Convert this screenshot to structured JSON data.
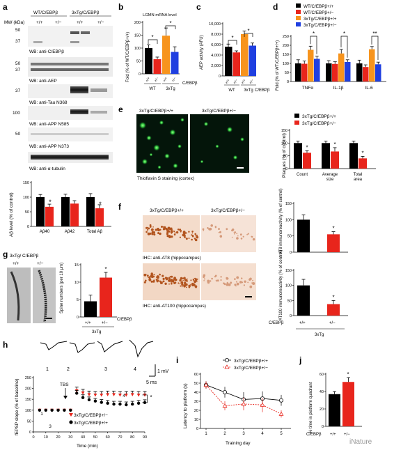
{
  "figure": {
    "panel_labels": [
      "a",
      "b",
      "c",
      "d",
      "e",
      "f",
      "g",
      "h",
      "i",
      "j"
    ],
    "watermark": "iNature",
    "colors": {
      "wt_pos": "#000000",
      "wt_neg": "#e8251c",
      "tg_pos": "#f7941d",
      "tg_neg": "#1f3fe0",
      "plaque_green": "#2bbf3a",
      "ihc_brown": "#b2541e"
    }
  },
  "panel_a": {
    "header_left": "WT/C/EBPβ",
    "header_right": "3xTg/C/EBPβ",
    "mw_label": "MW (kDa)",
    "lane_labels": [
      "+/+",
      "+/−",
      "+/+",
      "+/−"
    ],
    "blots": [
      {
        "caption": "WB: anti-C/EBPβ",
        "mw": [
          "50",
          "37"
        ]
      },
      {
        "caption": "WB: anti-AEP",
        "mw": [
          "50",
          "37"
        ]
      },
      {
        "caption": "WB: anti-Tau N368",
        "mw": [
          "37"
        ]
      },
      {
        "caption": "WB: anti-APP N585",
        "mw": [
          "100"
        ]
      },
      {
        "caption": "WB: anti-APP N373",
        "mw": [
          "50"
        ]
      },
      {
        "caption": "WB: anti-α-tubulin",
        "mw": []
      }
    ],
    "chart": {
      "ylabel": "Aβ level (% of control)",
      "yticks": [
        "0",
        "50",
        "100",
        "150"
      ],
      "categories": [
        "Aβ40",
        "Aβ42",
        "Total Aβ"
      ]
    }
  },
  "panel_b": {
    "title": "LGMN mRNA level",
    "ylabel": "Fold (% of WT/C/EBPβ+/+)",
    "yticks": [
      "0",
      "50",
      "100",
      "150",
      "200"
    ],
    "group_labels": [
      "WT",
      "3xTg"
    ],
    "lane_labels": [
      "+/+",
      "+/−",
      "+/+",
      "+/−"
    ],
    "axis_tag": "C/EBPβ"
  },
  "panel_c": {
    "ylabel": "AEP activity (AFU)",
    "yticks": [
      "0",
      "2,000",
      "4,000",
      "6,000",
      "8,000",
      "10,000"
    ],
    "group_labels": [
      "WT",
      "3xTg"
    ],
    "lane_labels": [
      "+/+",
      "+/−",
      "+/+",
      "+/−"
    ],
    "axis_tag": "C/EBPβ"
  },
  "panel_d": {
    "legend": [
      "WT/C/EBPβ+/+",
      "WT/C/EBPβ+/−",
      "3xTg/C/EBPβ+/+",
      "3xTg/C/EBPβ+/−"
    ],
    "ylabel": "Fold (% of WT/C/EBPβ+/+)",
    "yticks": [
      "0",
      "50",
      "100",
      "150",
      "200",
      "250"
    ],
    "categories": [
      "TNFα",
      "IL-1β",
      "IL-6"
    ],
    "sig": [
      "*",
      "*",
      "**"
    ]
  },
  "panel_e": {
    "img_left_label": "3xTg/C/EBPβ+/+",
    "img_right_label": "3xTg/C/EBPβ+/−",
    "caption": "Thioflavin S staining (cortex)",
    "legend": [
      "3xTg/C/EBPβ+/+",
      "3xTg/C/EBPβ+/−"
    ],
    "ylabel": "Plaques (% of control)",
    "yticks": [
      "0",
      "50",
      "100",
      "150"
    ],
    "categories": [
      "Count",
      "Average size",
      "Total area"
    ]
  },
  "panel_f": {
    "img_left_label": "3xTg/C/EBPβ+/+",
    "img_right_label": "3xTg/C/EBPβ+/−",
    "caption_top": "IHC: anti-AT8  (hippocampus)",
    "caption_bottom": "IHC: anti-AT100 (hippocampus)",
    "at8_ylabel": "AT8 immunoreactivity (% of control)",
    "at100_ylabel": "AT100 immunoreactivity (% of control)",
    "yticks": [
      "0",
      "50",
      "100",
      "150"
    ],
    "x_tag": "C/EBPβ",
    "lane_labels": [
      "+/+",
      "+/−"
    ],
    "group": "3xTg"
  },
  "panel_g": {
    "img_label": "3xTg/ C/EBPβ",
    "img_lane_labels": [
      "+/+",
      "+/−"
    ],
    "ylabel": "Spine numbers (per 10 μm)",
    "yticks": [
      "0",
      "5",
      "10",
      "15"
    ],
    "x_tag": "C/EBPβ",
    "lane_labels": [
      "+/+",
      "+/−"
    ],
    "group": "3xTg"
  },
  "panel_h": {
    "trace_numbers": [
      "1",
      "2",
      "3",
      "4"
    ],
    "scale_mv": "1 mV",
    "scale_ms": "5 ms",
    "ylabel": "fEPSP slope (% of baseline)",
    "xlabel": "Time (min)",
    "xticks": [
      "0",
      "10",
      "20",
      "30",
      "40",
      "50",
      "60",
      "70",
      "80",
      "90"
    ],
    "yticks": [
      "0",
      "50",
      "100",
      "150",
      "200",
      "250"
    ],
    "tbs": "TBS",
    "legend": [
      "3xTg/C/EBPβ+/−",
      "3xTg/C/EBPβ+/+"
    ],
    "sig": "*"
  },
  "panel_i": {
    "legend": [
      "3xTg/C/EBPβ+/+",
      "3xTg/C/EBPβ+/−"
    ],
    "ylabel": "Latency to platform (s)",
    "xlabel": "Training day",
    "xticks": [
      "1",
      "2",
      "3",
      "4",
      "5"
    ],
    "yticks": [
      "0",
      "10",
      "20",
      "30",
      "40",
      "50",
      "60"
    ]
  },
  "panel_j": {
    "ylabel": "% time in platform quadrant",
    "yticks": [
      "0",
      "20",
      "40",
      "60"
    ],
    "x_tag": "C/EBPβ",
    "lane_labels": [
      "+/+",
      "+/−"
    ]
  },
  "chart_data": [
    {
      "type": "bar",
      "id": "a-abeta",
      "categories": [
        "Aβ40",
        "Aβ42",
        "Total Aβ"
      ],
      "series": [
        {
          "values": [
            100,
            100,
            100
          ],
          "errors": [
            9,
            10,
            12
          ]
        },
        {
          "values": [
            67,
            78,
            62
          ],
          "errors": [
            9,
            10,
            12
          ]
        }
      ],
      "ylim": [
        0,
        150
      ]
    },
    {
      "type": "bar",
      "id": "b-lgmn",
      "categories": [
        "WT +/+",
        "WT +/−",
        "3xTg +/+",
        "3xTg +/−"
      ],
      "values": [
        100,
        57,
        148,
        85
      ],
      "errors": [
        13,
        8,
        30,
        20
      ],
      "ylim": [
        0,
        200
      ]
    },
    {
      "type": "bar",
      "id": "c-aep",
      "categories": [
        "WT +/+",
        "WT +/−",
        "3xTg +/+",
        "3xTg +/−"
      ],
      "values": [
        5600,
        4500,
        8000,
        5800
      ],
      "errors": [
        500,
        300,
        600,
        500
      ],
      "ylim": [
        0,
        10000
      ]
    },
    {
      "type": "bar",
      "id": "d-cytokines",
      "categories": [
        "TNFα",
        "IL-1β",
        "IL-6"
      ],
      "series": [
        {
          "name": "WT/C/EBPβ+/+",
          "values": [
            100,
            100,
            100
          ],
          "errors": [
            20,
            15,
            18
          ]
        },
        {
          "name": "WT/C/EBPβ+/−",
          "values": [
            98,
            97,
            80
          ],
          "errors": [
            15,
            12,
            12
          ]
        },
        {
          "name": "3xTg/C/EBPβ+/+",
          "values": [
            175,
            155,
            178
          ],
          "errors": [
            20,
            22,
            15
          ]
        },
        {
          "name": "3xTg/C/EBPβ+/−",
          "values": [
            125,
            108,
            95
          ],
          "errors": [
            15,
            12,
            12
          ]
        }
      ],
      "ylim": [
        0,
        250
      ]
    },
    {
      "type": "bar",
      "id": "e-plaques",
      "categories": [
        "Count",
        "Average size",
        "Total area"
      ],
      "series": [
        {
          "name": "3xTg/C/EBPβ+/+",
          "values": [
            100,
            100,
            100
          ],
          "errors": [
            8,
            8,
            8
          ]
        },
        {
          "name": "3xTg/C/EBPβ+/−",
          "values": [
            62,
            67,
            40
          ],
          "errors": [
            8,
            15,
            8
          ]
        }
      ],
      "ylim": [
        0,
        150
      ]
    },
    {
      "type": "bar",
      "id": "f-at8",
      "categories": [
        "+/+",
        "+/−"
      ],
      "values": [
        100,
        55
      ],
      "errors": [
        15,
        8
      ],
      "ylim": [
        0,
        150
      ]
    },
    {
      "type": "bar",
      "id": "f-at100",
      "categories": [
        "+/+",
        "+/−"
      ],
      "values": [
        100,
        38
      ],
      "errors": [
        20,
        12
      ],
      "ylim": [
        0,
        150
      ]
    },
    {
      "type": "bar",
      "id": "g-spines",
      "categories": [
        "+/+",
        "+/−"
      ],
      "values": [
        4.5,
        11.3
      ],
      "errors": [
        1.8,
        1.5
      ],
      "ylim": [
        0,
        15
      ]
    },
    {
      "type": "scatter",
      "id": "h-ltp",
      "series": [
        {
          "name": "3xTg/C/EBPβ+/−",
          "x": [
            5,
            10,
            15,
            20,
            25,
            30,
            35,
            40,
            45,
            50,
            55,
            60,
            65,
            70,
            75,
            80,
            85,
            90
          ],
          "y": [
            100,
            100,
            100,
            100,
            100,
            100,
            190,
            180,
            172,
            170,
            170,
            172,
            172,
            170,
            170,
            172,
            170,
            170
          ]
        },
        {
          "name": "3xTg/C/EBPβ+/+",
          "x": [
            5,
            10,
            15,
            20,
            25,
            30,
            35,
            40,
            45,
            50,
            55,
            60,
            65,
            70,
            75,
            80,
            85,
            90
          ],
          "y": [
            100,
            100,
            100,
            100,
            100,
            100,
            178,
            158,
            148,
            142,
            136,
            132,
            128,
            128,
            125,
            128,
            132,
            135
          ]
        }
      ],
      "xlim": [
        0,
        90
      ],
      "ylim": [
        0,
        250
      ]
    },
    {
      "type": "line",
      "id": "i-latency",
      "x": [
        1,
        2,
        3,
        4,
        5
      ],
      "series": [
        {
          "name": "3xTg/C/EBPβ+/+",
          "values": [
            48,
            40,
            32,
            33,
            31
          ],
          "errors": [
            4,
            6,
            8,
            8,
            6
          ]
        },
        {
          "name": "3xTg/C/EBPβ+/−",
          "values": [
            48,
            25,
            27,
            26,
            16
          ],
          "errors": [
            4,
            5,
            7,
            8,
            4
          ]
        }
      ],
      "ylim": [
        0,
        60
      ]
    },
    {
      "type": "bar",
      "id": "j-quadrant",
      "categories": [
        "+/+",
        "+/−"
      ],
      "values": [
        37,
        51
      ],
      "errors": [
        3,
        5
      ],
      "ylim": [
        0,
        60
      ]
    }
  ]
}
